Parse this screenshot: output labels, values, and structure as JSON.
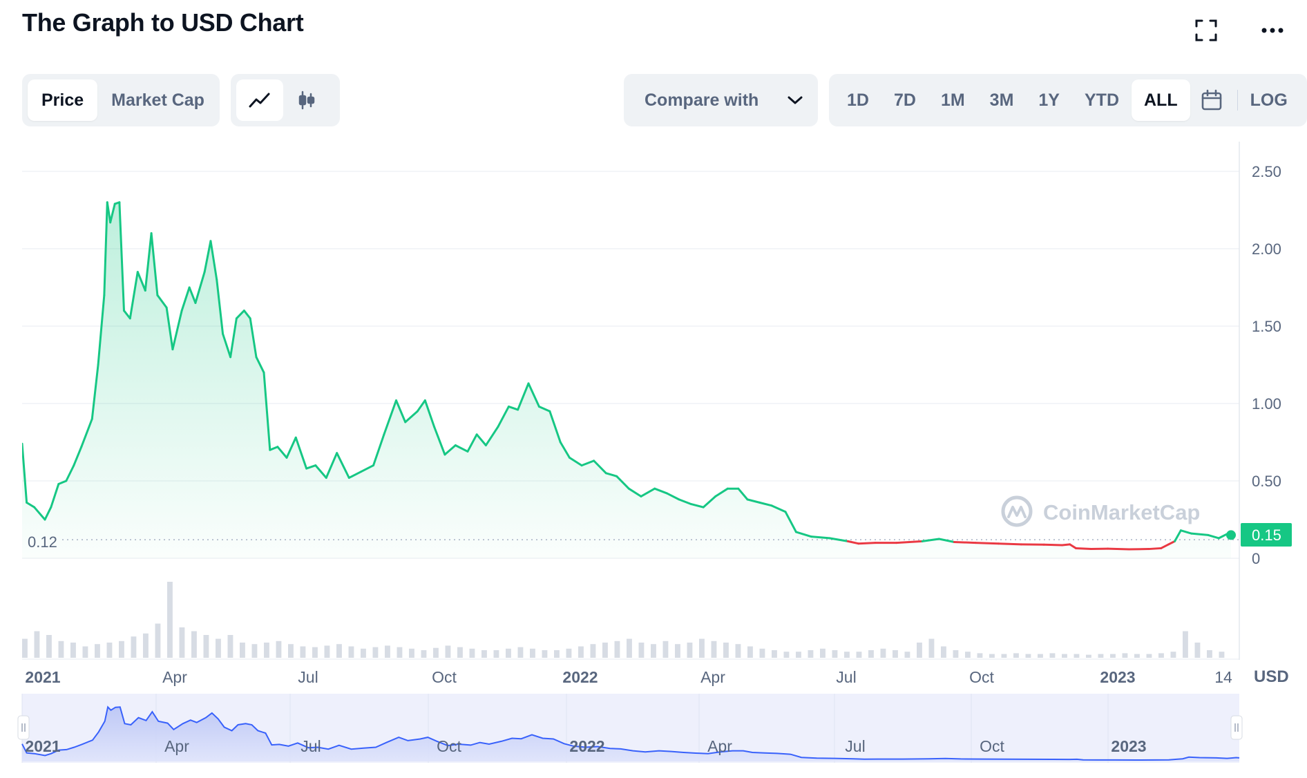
{
  "header": {
    "title": "The Graph to USD Chart",
    "fullscreen_icon": "expand-icon",
    "more_icon": "more-horizontal-icon"
  },
  "toolbar": {
    "metric_tabs": [
      {
        "label": "Price",
        "active": true
      },
      {
        "label": "Market Cap",
        "active": false
      }
    ],
    "chart_type_icons": [
      {
        "icon": "line-chart-icon",
        "active": true
      },
      {
        "icon": "candlestick-icon",
        "active": false
      }
    ],
    "compare_label": "Compare with",
    "compare_icon": "chevron-down-icon",
    "ranges": [
      {
        "label": "1D",
        "active": false
      },
      {
        "label": "7D",
        "active": false
      },
      {
        "label": "1M",
        "active": false
      },
      {
        "label": "3M",
        "active": false
      },
      {
        "label": "1Y",
        "active": false
      },
      {
        "label": "YTD",
        "active": false
      },
      {
        "label": "ALL",
        "active": true
      }
    ],
    "calendar_icon": "calendar-icon",
    "log_label": "LOG"
  },
  "chart_data": {
    "type": "area",
    "title": "The Graph to USD Chart",
    "ylabel": "",
    "y_unit": "USD",
    "ylim": [
      0,
      2.5
    ],
    "y_ticks": [
      "2.50",
      "2.00",
      "1.50",
      "1.00",
      "0.50",
      "0"
    ],
    "x_ticks": [
      {
        "label": "2021",
        "bold": true
      },
      {
        "label": "Apr",
        "bold": false
      },
      {
        "label": "Jul",
        "bold": false
      },
      {
        "label": "Oct",
        "bold": false
      },
      {
        "label": "2022",
        "bold": true
      },
      {
        "label": "Apr",
        "bold": false
      },
      {
        "label": "Jul",
        "bold": false
      },
      {
        "label": "Oct",
        "bold": false
      },
      {
        "label": "2023",
        "bold": true
      },
      {
        "label": "14",
        "bold": false
      }
    ],
    "reference_price": "0.12",
    "current_price": "0.15",
    "watermark": "CoinMarketCap",
    "up_color": "#16c784",
    "down_color": "#ea3943",
    "series": [
      {
        "name": "Price",
        "points": [
          [
            "2020-12-17",
            0.74
          ],
          [
            "2020-12-20",
            0.36
          ],
          [
            "2020-12-25",
            0.33
          ],
          [
            "2021-01-01",
            0.25
          ],
          [
            "2021-01-05",
            0.33
          ],
          [
            "2021-01-10",
            0.48
          ],
          [
            "2021-01-15",
            0.5
          ],
          [
            "2021-01-20",
            0.6
          ],
          [
            "2021-01-25",
            0.72
          ],
          [
            "2021-02-01",
            0.9
          ],
          [
            "2021-02-05",
            1.25
          ],
          [
            "2021-02-09",
            1.7
          ],
          [
            "2021-02-11",
            2.3
          ],
          [
            "2021-02-13",
            2.17
          ],
          [
            "2021-02-16",
            2.29
          ],
          [
            "2021-02-19",
            2.3
          ],
          [
            "2021-02-22",
            1.6
          ],
          [
            "2021-02-26",
            1.55
          ],
          [
            "2021-03-03",
            1.85
          ],
          [
            "2021-03-08",
            1.73
          ],
          [
            "2021-03-12",
            2.1
          ],
          [
            "2021-03-16",
            1.7
          ],
          [
            "2021-03-22",
            1.62
          ],
          [
            "2021-03-26",
            1.35
          ],
          [
            "2021-04-01",
            1.6
          ],
          [
            "2021-04-06",
            1.75
          ],
          [
            "2021-04-10",
            1.65
          ],
          [
            "2021-04-16",
            1.85
          ],
          [
            "2021-04-20",
            2.05
          ],
          [
            "2021-04-24",
            1.8
          ],
          [
            "2021-04-28",
            1.45
          ],
          [
            "2021-05-03",
            1.3
          ],
          [
            "2021-05-07",
            1.55
          ],
          [
            "2021-05-12",
            1.6
          ],
          [
            "2021-05-16",
            1.55
          ],
          [
            "2021-05-20",
            1.3
          ],
          [
            "2021-05-25",
            1.2
          ],
          [
            "2021-05-29",
            0.7
          ],
          [
            "2021-06-03",
            0.72
          ],
          [
            "2021-06-09",
            0.65
          ],
          [
            "2021-06-15",
            0.78
          ],
          [
            "2021-06-22",
            0.58
          ],
          [
            "2021-06-28",
            0.6
          ],
          [
            "2021-07-05",
            0.52
          ],
          [
            "2021-07-12",
            0.68
          ],
          [
            "2021-07-20",
            0.52
          ],
          [
            "2021-07-28",
            0.56
          ],
          [
            "2021-08-05",
            0.6
          ],
          [
            "2021-08-12",
            0.8
          ],
          [
            "2021-08-20",
            1.02
          ],
          [
            "2021-08-26",
            0.88
          ],
          [
            "2021-09-03",
            0.95
          ],
          [
            "2021-09-08",
            1.02
          ],
          [
            "2021-09-14",
            0.85
          ],
          [
            "2021-09-21",
            0.67
          ],
          [
            "2021-09-28",
            0.73
          ],
          [
            "2021-10-06",
            0.69
          ],
          [
            "2021-10-12",
            0.8
          ],
          [
            "2021-10-18",
            0.73
          ],
          [
            "2021-10-26",
            0.85
          ],
          [
            "2021-11-02",
            0.98
          ],
          [
            "2021-11-08",
            0.96
          ],
          [
            "2021-11-15",
            1.13
          ],
          [
            "2021-11-22",
            0.98
          ],
          [
            "2021-11-29",
            0.95
          ],
          [
            "2021-12-06",
            0.75
          ],
          [
            "2021-12-12",
            0.65
          ],
          [
            "2021-12-20",
            0.6
          ],
          [
            "2021-12-28",
            0.63
          ],
          [
            "2022-01-05",
            0.55
          ],
          [
            "2022-01-12",
            0.53
          ],
          [
            "2022-01-20",
            0.45
          ],
          [
            "2022-01-28",
            0.4
          ],
          [
            "2022-02-06",
            0.45
          ],
          [
            "2022-02-14",
            0.42
          ],
          [
            "2022-02-22",
            0.38
          ],
          [
            "2022-03-02",
            0.35
          ],
          [
            "2022-03-10",
            0.33
          ],
          [
            "2022-03-18",
            0.4
          ],
          [
            "2022-03-26",
            0.45
          ],
          [
            "2022-04-02",
            0.45
          ],
          [
            "2022-04-08",
            0.38
          ],
          [
            "2022-04-16",
            0.36
          ],
          [
            "2022-04-24",
            0.34
          ],
          [
            "2022-05-03",
            0.3
          ],
          [
            "2022-05-10",
            0.17
          ],
          [
            "2022-05-20",
            0.14
          ],
          [
            "2022-06-01",
            0.13
          ],
          [
            "2022-06-13",
            0.11
          ],
          [
            "2022-06-20",
            0.095
          ],
          [
            "2022-07-01",
            0.1
          ],
          [
            "2022-07-15",
            0.1
          ],
          [
            "2022-08-01",
            0.11
          ],
          [
            "2022-08-12",
            0.125
          ],
          [
            "2022-08-22",
            0.105
          ],
          [
            "2022-09-05",
            0.1
          ],
          [
            "2022-09-20",
            0.095
          ],
          [
            "2022-10-05",
            0.09
          ],
          [
            "2022-10-20",
            0.088
          ],
          [
            "2022-11-01",
            0.085
          ],
          [
            "2022-11-06",
            0.09
          ],
          [
            "2022-11-10",
            0.065
          ],
          [
            "2022-11-20",
            0.06
          ],
          [
            "2022-12-01",
            0.062
          ],
          [
            "2022-12-15",
            0.058
          ],
          [
            "2022-12-28",
            0.06
          ],
          [
            "2023-01-05",
            0.065
          ],
          [
            "2023-01-10",
            0.09
          ],
          [
            "2023-01-14",
            0.11
          ],
          [
            "2023-01-18",
            0.18
          ],
          [
            "2023-01-25",
            0.16
          ],
          [
            "2023-02-05",
            0.15
          ],
          [
            "2023-02-12",
            0.13
          ],
          [
            "2023-02-18",
            0.16
          ],
          [
            "2023-02-20",
            0.15
          ]
        ]
      }
    ],
    "volume": [
      0.25,
      0.35,
      0.3,
      0.22,
      0.2,
      0.15,
      0.18,
      0.2,
      0.22,
      0.28,
      0.32,
      0.45,
      1.0,
      0.4,
      0.35,
      0.3,
      0.25,
      0.3,
      0.2,
      0.18,
      0.2,
      0.22,
      0.18,
      0.15,
      0.14,
      0.16,
      0.18,
      0.15,
      0.12,
      0.14,
      0.16,
      0.14,
      0.12,
      0.1,
      0.13,
      0.16,
      0.14,
      0.12,
      0.1,
      0.1,
      0.12,
      0.14,
      0.12,
      0.1,
      0.1,
      0.12,
      0.15,
      0.18,
      0.2,
      0.22,
      0.25,
      0.2,
      0.18,
      0.22,
      0.18,
      0.2,
      0.25,
      0.22,
      0.2,
      0.18,
      0.15,
      0.12,
      0.1,
      0.08,
      0.08,
      0.1,
      0.12,
      0.1,
      0.08,
      0.08,
      0.1,
      0.12,
      0.1,
      0.08,
      0.2,
      0.25,
      0.15,
      0.1,
      0.08,
      0.06,
      0.05,
      0.05,
      0.06,
      0.05,
      0.05,
      0.06,
      0.05,
      0.05,
      0.04,
      0.05,
      0.05,
      0.06,
      0.05,
      0.05,
      0.06,
      0.08,
      0.35,
      0.2,
      0.1,
      0.08
    ],
    "navigator_x_ticks": [
      "2021",
      "Apr",
      "Jul",
      "Oct",
      "2022",
      "Apr",
      "Jul",
      "Oct",
      "2023"
    ]
  }
}
